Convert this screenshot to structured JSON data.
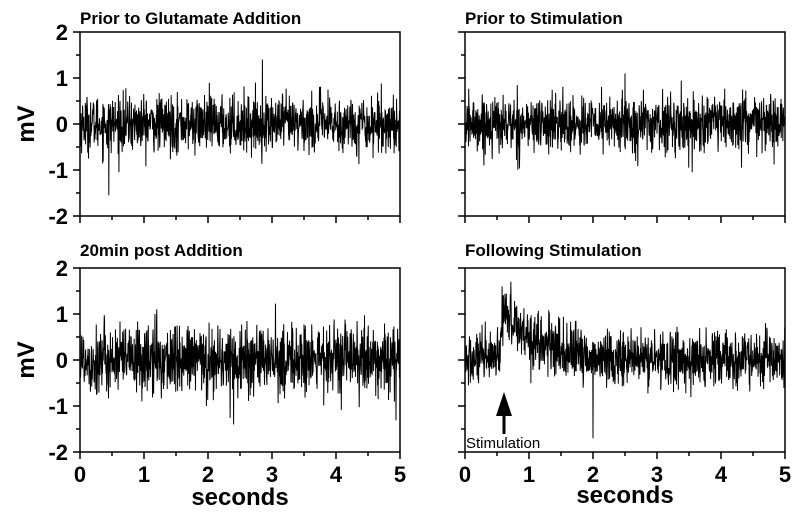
{
  "chart_data": [
    {
      "type": "line",
      "title": "Prior to Glutamate Addition",
      "xlabel": "",
      "ylabel": "mV",
      "xlim": [
        0,
        5
      ],
      "ylim": [
        -2,
        2
      ],
      "xticks": [],
      "yticks": [
        "2",
        "1",
        "0",
        "-1",
        "-2"
      ],
      "grid": false,
      "trace": {
        "baseline": 0,
        "noise_sd": 0.3,
        "extremes": [
          [
            0.45,
            -1.55
          ],
          [
            2.85,
            1.4
          ]
        ],
        "events": []
      }
    },
    {
      "type": "line",
      "title": "Prior to Stimulation",
      "xlabel": "",
      "ylabel": "",
      "xlim": [
        0,
        5
      ],
      "ylim": [
        -2,
        2
      ],
      "xticks": [],
      "yticks": [],
      "grid": false,
      "trace": {
        "baseline": 0,
        "noise_sd": 0.3,
        "extremes": [
          [
            2.5,
            1.1
          ],
          [
            3.55,
            -1.05
          ]
        ],
        "events": []
      }
    },
    {
      "type": "line",
      "title": "20min post Addition",
      "xlabel": "seconds",
      "ylabel": "mV",
      "xlim": [
        0,
        5
      ],
      "ylim": [
        -2,
        2
      ],
      "xticks": [
        "0",
        "1",
        "2",
        "3",
        "4",
        "5"
      ],
      "yticks": [
        "2",
        "1",
        "0",
        "-1",
        "-2"
      ],
      "grid": false,
      "trace": {
        "baseline": 0,
        "noise_sd": 0.38,
        "extremes": [
          [
            1.2,
            1.1
          ],
          [
            2.4,
            -1.4
          ]
        ],
        "events": []
      }
    },
    {
      "type": "line",
      "title": "Following Stimulation",
      "xlabel": "seconds",
      "ylabel": "",
      "xlim": [
        0,
        5
      ],
      "ylim": [
        -2,
        2
      ],
      "xticks": [
        "0",
        "1",
        "2",
        "3",
        "4",
        "5"
      ],
      "yticks": [],
      "grid": false,
      "annotation": {
        "text": "Stimulation",
        "x": 0.65
      },
      "trace": {
        "baseline": 0,
        "noise_sd": 0.3,
        "extremes": [
          [
            0.58,
            1.6
          ],
          [
            2.0,
            -1.7
          ]
        ],
        "events": [
          {
            "t0": 0.55,
            "peak": 1.3,
            "decay": 0.5
          }
        ]
      }
    }
  ]
}
